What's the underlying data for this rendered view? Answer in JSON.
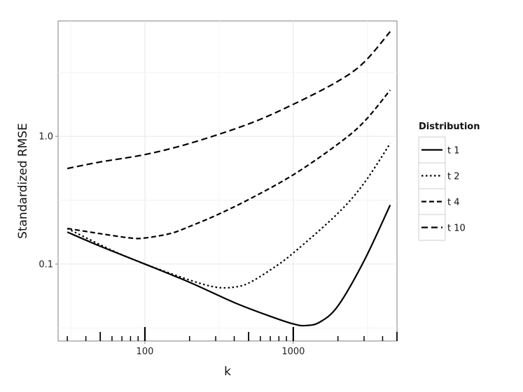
{
  "chart_data": {
    "type": "line",
    "xlabel": "k",
    "ylabel": "Standardized RMSE",
    "x_scale": "log10",
    "y_scale": "log10",
    "xlim": [
      26,
      5000
    ],
    "ylim": [
      0.025,
      8.0
    ],
    "x_ticks": [
      {
        "value": 100,
        "label": "100"
      },
      {
        "value": 1000,
        "label": "1000"
      }
    ],
    "y_ticks": [
      {
        "value": 0.1,
        "label": "0.1"
      },
      {
        "value": 1.0,
        "label": "1.0"
      }
    ],
    "grid": true,
    "rug": true,
    "rug_ticks": [
      30,
      40,
      50,
      60,
      70,
      80,
      90,
      100,
      200,
      300,
      400,
      500,
      600,
      700,
      800,
      900,
      1000,
      2000,
      3000,
      4000,
      5000
    ],
    "legend": {
      "title": "Distribution",
      "position": "right"
    },
    "series": [
      {
        "name": "t 1",
        "style": "solid",
        "points": [
          [
            30,
            0.178
          ],
          [
            50,
            0.138
          ],
          [
            100,
            0.1
          ],
          [
            200,
            0.072
          ],
          [
            400,
            0.05
          ],
          [
            700,
            0.039
          ],
          [
            1000,
            0.034
          ],
          [
            1200,
            0.033
          ],
          [
            1500,
            0.035
          ],
          [
            2000,
            0.047
          ],
          [
            3000,
            0.106
          ],
          [
            4500,
            0.29
          ]
        ]
      },
      {
        "name": "t 2",
        "style": "dotted",
        "points": [
          [
            30,
            0.19
          ],
          [
            60,
            0.128
          ],
          [
            100,
            0.1
          ],
          [
            200,
            0.075
          ],
          [
            300,
            0.066
          ],
          [
            400,
            0.066
          ],
          [
            500,
            0.071
          ],
          [
            700,
            0.09
          ],
          [
            1000,
            0.122
          ],
          [
            2000,
            0.25
          ],
          [
            3000,
            0.43
          ],
          [
            4500,
            0.88
          ]
        ]
      },
      {
        "name": "t 4",
        "style": "dashed",
        "points": [
          [
            30,
            0.19
          ],
          [
            50,
            0.173
          ],
          [
            80,
            0.16
          ],
          [
            100,
            0.16
          ],
          [
            150,
            0.174
          ],
          [
            200,
            0.197
          ],
          [
            300,
            0.24
          ],
          [
            500,
            0.32
          ],
          [
            1000,
            0.5
          ],
          [
            2000,
            0.87
          ],
          [
            3000,
            1.3
          ],
          [
            4500,
            2.3
          ]
        ]
      },
      {
        "name": "t 10",
        "style": "longdash",
        "points": [
          [
            30,
            0.56
          ],
          [
            50,
            0.63
          ],
          [
            100,
            0.72
          ],
          [
            200,
            0.88
          ],
          [
            500,
            1.25
          ],
          [
            1000,
            1.78
          ],
          [
            2000,
            2.7
          ],
          [
            3000,
            3.8
          ],
          [
            4500,
            6.6
          ]
        ]
      }
    ]
  }
}
